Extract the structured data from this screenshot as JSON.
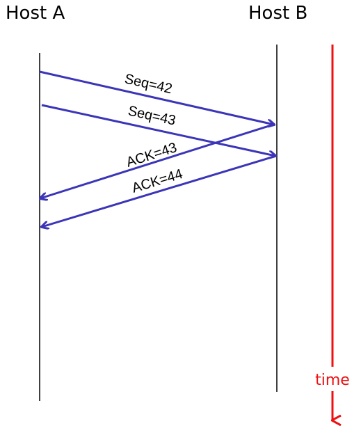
{
  "hosts": {
    "a": "Host A",
    "b": "Host B"
  },
  "messages": [
    {
      "label": "Seq=42",
      "from": "Host A",
      "to": "Host B"
    },
    {
      "label": "Seq=43",
      "from": "Host A",
      "to": "Host B"
    },
    {
      "label": "ACK=43",
      "from": "Host B",
      "to": "Host A"
    },
    {
      "label": "ACK=44",
      "from": "Host B",
      "to": "Host A"
    }
  ],
  "time_axis": {
    "label": "time"
  },
  "colors": {
    "arrow": "#3b35b8",
    "time": "#ee1111",
    "timeline": "#000000"
  }
}
